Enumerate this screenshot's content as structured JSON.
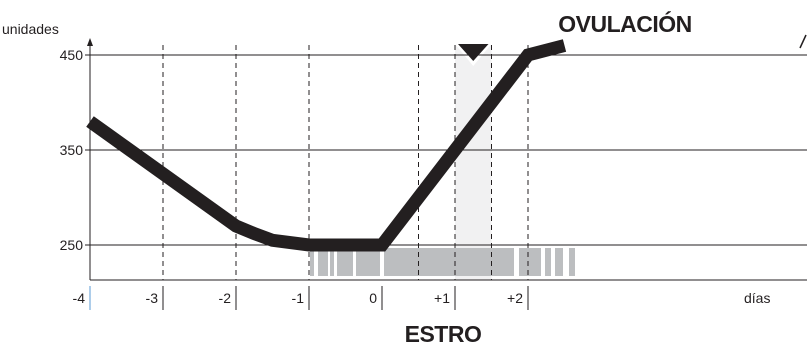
{
  "chart_data": {
    "type": "line",
    "ylabel": "unidades",
    "xlabel": "días",
    "y_ticks": [
      250,
      350,
      450
    ],
    "ylim": [
      215,
      470
    ],
    "xlim": [
      -4,
      2.9
    ],
    "x_ticks": [
      {
        "value": -4,
        "label": "-4"
      },
      {
        "value": -3,
        "label": "-3"
      },
      {
        "value": -2,
        "label": "-2"
      },
      {
        "value": -1,
        "label": "-1"
      },
      {
        "value": 0,
        "label": "0"
      },
      {
        "value": 1,
        "label": "+1"
      },
      {
        "value": 2,
        "label": "+2"
      }
    ],
    "dashed_x": [
      -3,
      -2,
      -1,
      0.5,
      1,
      1.5,
      2
    ],
    "series": [
      {
        "x": [
          -4,
          -2,
          -1.75,
          -1.5,
          -1,
          -0.5,
          0,
          0.5,
          1,
          1.5,
          2,
          2.5
        ],
        "y": [
          380,
          270,
          262,
          255,
          250,
          250,
          250,
          300,
          350,
          400,
          450,
          460
        ]
      }
    ],
    "ovulation_band": [
      1,
      1.5
    ],
    "annotations": {
      "ovulation": "OVULACIÓN",
      "estrus": "ESTRO"
    },
    "colors": {
      "line": "#231f20",
      "band": "#f1f1f2",
      "estrus_bars": "#bcbec0",
      "first_tick_accent": "#5b9bd5"
    }
  }
}
